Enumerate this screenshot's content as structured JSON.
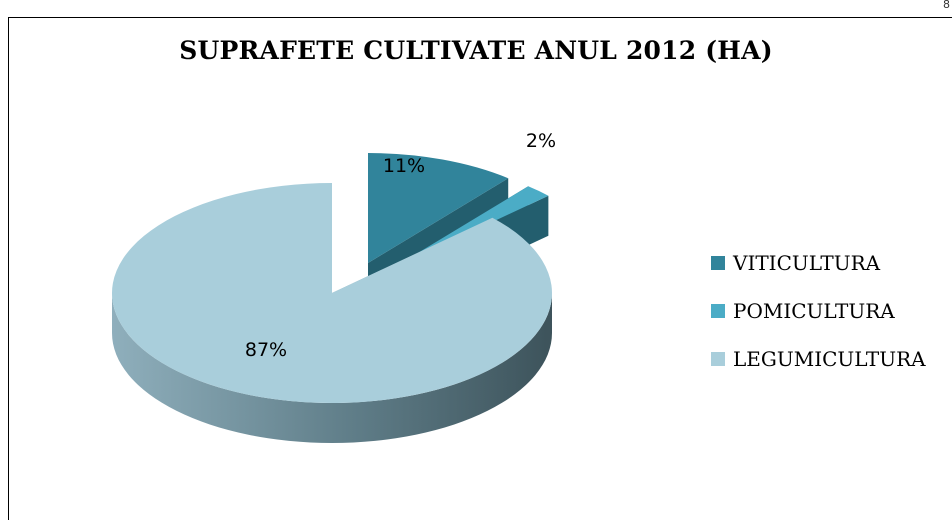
{
  "corner_text": "8",
  "chart_data": {
    "type": "pie",
    "title": "SUPRAFETE CULTIVATE ANUL 2012 (HA)",
    "categories": [
      "VITICULTURA",
      "POMICULTURA",
      "LEGUMICULTURA"
    ],
    "values": [
      11,
      2,
      87
    ],
    "labels": [
      "11%",
      "2%",
      "87%"
    ],
    "colors": [
      "#31849B",
      "#4BACC6",
      "#A9CEDB"
    ],
    "style": "3d-exploded",
    "legend_position": "right"
  }
}
